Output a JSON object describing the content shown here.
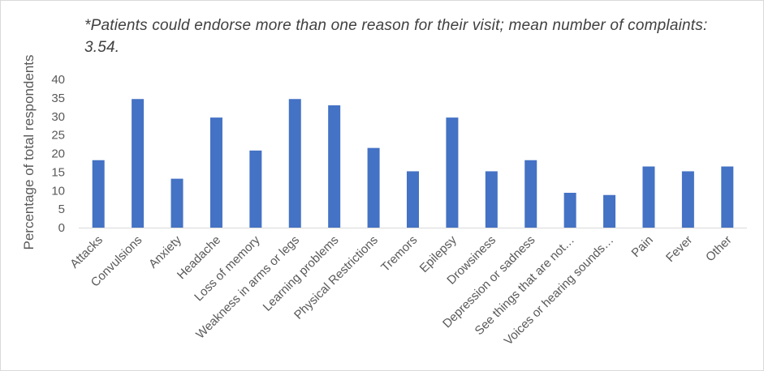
{
  "note": "*Patients could endorse more than one reason for their visit; mean number of complaints: 3.54.",
  "chart_data": {
    "type": "bar",
    "title": "",
    "xlabel": "",
    "ylabel": "Percentage of total respondents",
    "ylim": [
      0,
      40
    ],
    "yticks": [
      0,
      5,
      10,
      15,
      20,
      25,
      30,
      35,
      40
    ],
    "grid": false,
    "bar_color": "#4472c4",
    "categories": [
      "Attacks",
      "Convulsions",
      "Anxiety",
      "Headache",
      "Loss of memory",
      "Weakness in arms or legs",
      "Learning problems",
      "Physical Restrictions",
      "Tremors",
      "Epilepsy",
      "Drowsiness",
      "Depression or sadness",
      "See things that are not…",
      "Voices or hearing sounds…",
      "Pain",
      "Fever",
      "Other"
    ],
    "values": [
      18.2,
      34.7,
      13.2,
      29.7,
      20.8,
      34.7,
      33.0,
      21.5,
      15.2,
      29.7,
      15.2,
      18.2,
      9.4,
      8.8,
      16.5,
      15.2,
      16.5
    ]
  }
}
